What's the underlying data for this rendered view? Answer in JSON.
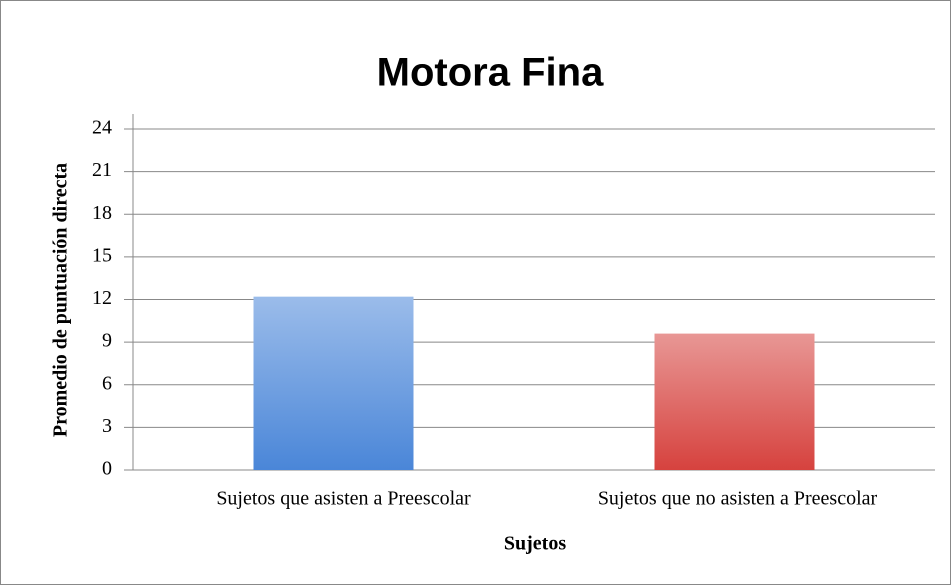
{
  "chart_data": {
    "type": "bar",
    "title": "Motora Fina",
    "x_label": "Sujetos",
    "y_label": "Promedio de puntuación directa",
    "categories": [
      "Sujetos que asisten a Preescolar",
      "Sujetos que no asisten a Preescolar"
    ],
    "values": [
      12.2,
      9.6
    ],
    "colors": [
      "#4a86d8",
      "#d6423e"
    ],
    "ylim": [
      0,
      24
    ],
    "yticks": [
      0,
      3,
      6,
      9,
      12,
      15,
      18,
      21,
      24
    ],
    "grid": true
  }
}
